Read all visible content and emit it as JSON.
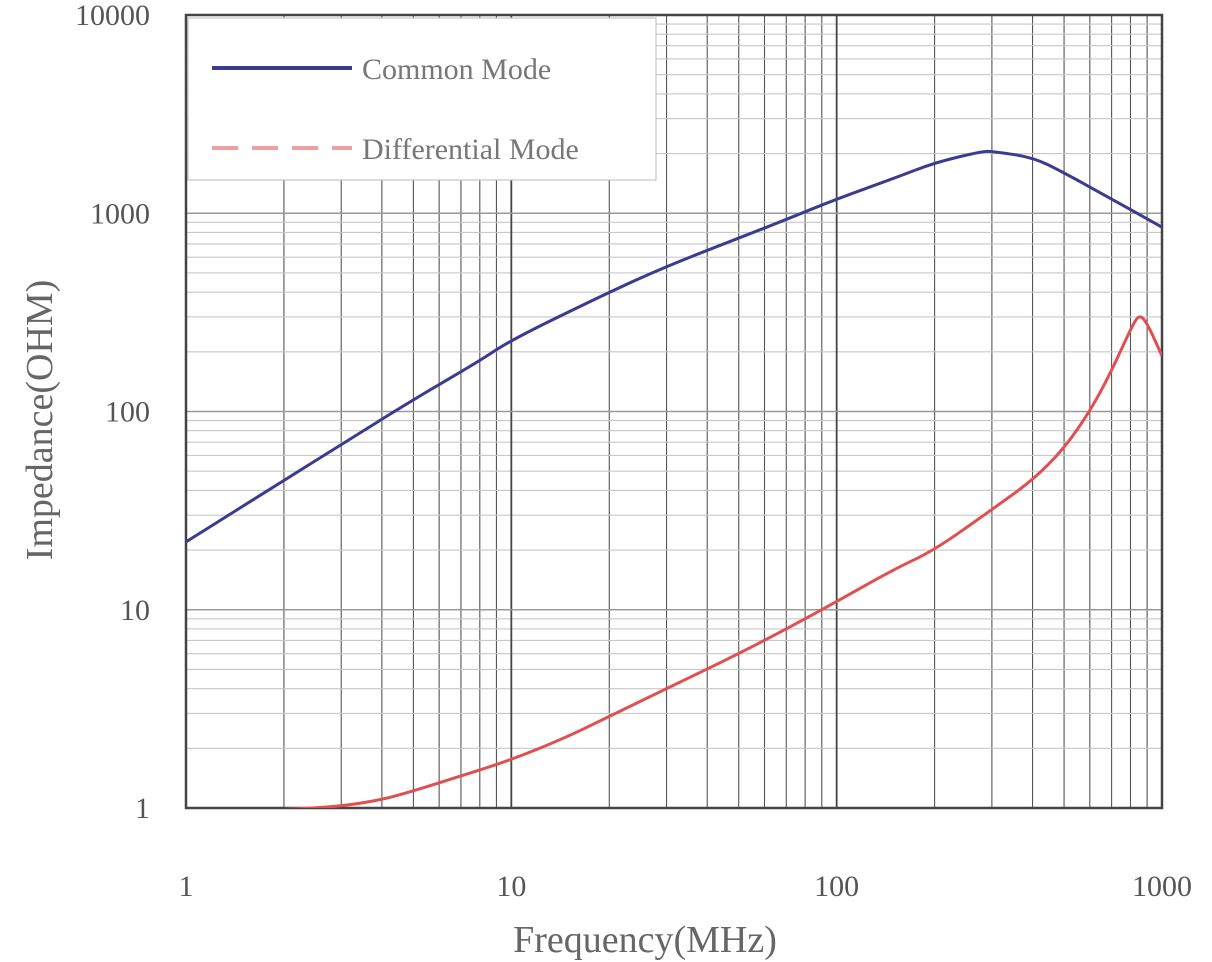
{
  "chart_data": {
    "type": "line",
    "xlabel": "Frequency(MHz)",
    "ylabel": "Impedance(OHM)",
    "x_scale": "log",
    "y_scale": "log",
    "xlim": [
      1,
      1000
    ],
    "ylim": [
      1,
      10000
    ],
    "grid": true,
    "legend": "top-left",
    "x_ticks": [
      "1",
      "10",
      "100",
      "1000"
    ],
    "y_ticks": [
      "1",
      "10",
      "100",
      "1000",
      "10000"
    ],
    "series": [
      {
        "name": "Common Mode",
        "color": "#3b3b8f",
        "style": "solid",
        "x": [
          1,
          2,
          3,
          5,
          8,
          10,
          20,
          30,
          50,
          70,
          100,
          150,
          200,
          280,
          300,
          400,
          500,
          700,
          1000
        ],
        "y": [
          22,
          45,
          68,
          115,
          180,
          230,
          400,
          540,
          750,
          930,
          1180,
          1500,
          1800,
          2050,
          2050,
          1920,
          1600,
          1180,
          850
        ]
      },
      {
        "name": "Differential Mode",
        "color": "#e05050",
        "style": "dashed",
        "x": [
          1,
          2,
          3,
          4,
          5,
          7,
          10,
          15,
          20,
          30,
          50,
          70,
          100,
          150,
          200,
          300,
          400,
          500,
          600,
          700,
          800,
          850,
          900,
          1000
        ],
        "y": [
          0.95,
          0.98,
          1.02,
          1.1,
          1.22,
          1.45,
          1.75,
          2.3,
          2.9,
          4.0,
          6.0,
          8.0,
          11,
          16,
          20,
          32,
          45,
          65,
          100,
          160,
          260,
          310,
          280,
          190
        ]
      }
    ]
  }
}
